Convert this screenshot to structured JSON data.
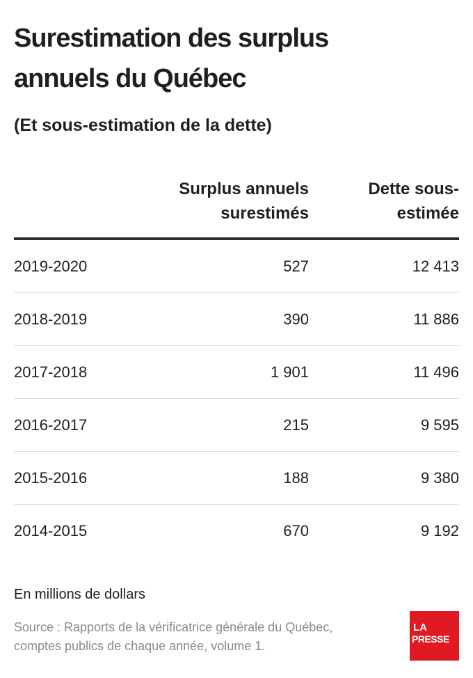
{
  "title": "Surestimation des surplus annuels du Québec",
  "subtitle": "(Et sous-estimation de la dette)",
  "columns": {
    "surplus": {
      "line1": "Surplus annuels",
      "line2": "surestimés"
    },
    "dette": {
      "line1": "Dette sous-",
      "line2": "estimée"
    }
  },
  "unit_note": "En millions de dollars",
  "source": "Source : Rapports de la vérificatrice générale du Québec, comptes publics de chaque année, volume 1.",
  "logo": {
    "line1": "LA",
    "line2": "PRESSE",
    "color": "#e01a22"
  },
  "chart_data": {
    "type": "table",
    "title": "Surestimation des surplus annuels du Québec",
    "subtitle": "(Et sous-estimation de la dette)",
    "columns": [
      "",
      "Surplus annuels surestimés",
      "Dette sous-estimée"
    ],
    "rows": [
      {
        "year": "2019-2020",
        "surplus": "527",
        "dette": "12 413"
      },
      {
        "year": "2018-2019",
        "surplus": "390",
        "dette": "11 886"
      },
      {
        "year": "2017-2018",
        "surplus": "1 901",
        "dette": "11 496"
      },
      {
        "year": "2016-2017",
        "surplus": "215",
        "dette": "9 595"
      },
      {
        "year": "2015-2016",
        "surplus": "188",
        "dette": "9 380"
      },
      {
        "year": "2014-2015",
        "surplus": "670",
        "dette": "9 192"
      }
    ],
    "values_surplus": [
      527,
      390,
      1901,
      215,
      188,
      670
    ],
    "values_dette": [
      12413,
      11886,
      11496,
      9595,
      9380,
      9192
    ]
  }
}
